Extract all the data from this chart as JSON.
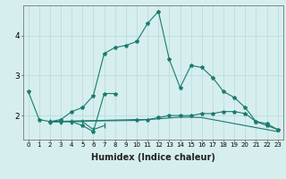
{
  "xlabel": "Humidex (Indice chaleur)",
  "x_values": [
    0,
    1,
    2,
    3,
    4,
    5,
    6,
    7,
    8,
    9,
    10,
    11,
    12,
    13,
    14,
    15,
    16,
    17,
    18,
    19,
    20,
    21,
    22,
    23
  ],
  "line1": [
    2.6,
    1.9,
    1.85,
    1.85,
    1.85,
    1.75,
    1.6,
    2.55,
    2.55,
    null,
    null,
    null,
    null,
    null,
    null,
    null,
    null,
    null,
    null,
    null,
    null,
    null,
    null,
    null
  ],
  "line2": [
    null,
    null,
    1.85,
    1.85,
    1.85,
    1.85,
    1.65,
    1.75,
    null,
    null,
    null,
    null,
    null,
    null,
    null,
    null,
    null,
    null,
    null,
    null,
    null,
    null,
    null,
    null
  ],
  "line3": [
    null,
    null,
    1.85,
    1.9,
    2.1,
    2.2,
    2.5,
    3.55,
    3.7,
    3.75,
    3.85,
    4.3,
    4.6,
    3.4,
    2.7,
    3.25,
    3.2,
    2.95,
    2.6,
    2.45,
    2.2,
    1.85,
    1.8,
    1.65
  ],
  "line4": [
    null,
    null,
    1.85,
    null,
    null,
    null,
    null,
    null,
    null,
    null,
    1.9,
    1.9,
    1.95,
    2.0,
    2.0,
    2.0,
    2.05,
    2.05,
    2.1,
    2.1,
    2.05,
    1.85,
    1.75,
    1.65
  ],
  "line5": [
    null,
    null,
    1.85,
    null,
    null,
    null,
    null,
    null,
    null,
    null,
    1.88,
    1.9,
    1.92,
    1.94,
    1.96,
    1.96,
    1.95,
    1.9,
    1.85,
    1.8,
    1.75,
    1.7,
    1.65,
    1.6
  ],
  "color": "#1a7a6e",
  "bg_color": "#d6eeee",
  "grid_color": "#b8d8d8",
  "ylim": [
    1.4,
    4.75
  ],
  "yticks": [
    2,
    3,
    4
  ],
  "xlim": [
    -0.5,
    23.5
  ],
  "xtick_fontsize": 5.0,
  "ytick_fontsize": 6.5,
  "xlabel_fontsize": 7.0
}
